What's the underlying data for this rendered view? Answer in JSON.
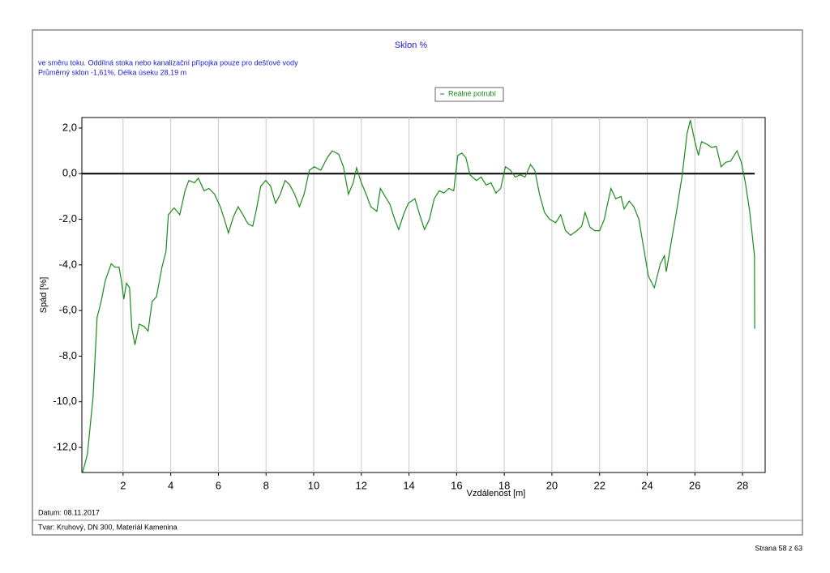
{
  "chart_data": {
    "type": "line",
    "title": "Sklon %",
    "subtitle": [
      "ve směru toku. Oddílná stoka nebo kanalizační přípojka pouze pro dešťové vody",
      "Průměrný sklon -1,61%, Délka úseku  28,19 m"
    ],
    "x_label": "Vzdálenost [m]",
    "y_label": "Spád [%]",
    "legend": "top-center",
    "grid": "x",
    "reference_line": {
      "value": 0,
      "color": "#000000"
    },
    "xlim": [
      0.27,
      28.95
    ],
    "ylim": [
      -13.1,
      2.46
    ],
    "xticks": [
      2,
      4,
      6,
      8,
      10,
      12,
      14,
      16,
      18,
      20,
      22,
      24,
      26,
      28
    ],
    "yticks": [
      {
        "value": 2,
        "label": "2,0"
      },
      {
        "value": 0,
        "label": "0,0"
      },
      {
        "value": -2,
        "label": "-2,0"
      },
      {
        "value": -4,
        "label": "-4,0"
      },
      {
        "value": -6,
        "label": "-6,0"
      },
      {
        "value": -8,
        "label": "-8,0"
      },
      {
        "value": -10,
        "label": "-10,0"
      },
      {
        "value": -12,
        "label": "-12,0"
      }
    ],
    "x": [
      0.3,
      0.5,
      0.74,
      0.91,
      1.08,
      1.25,
      1.5,
      1.66,
      1.83,
      1.93,
      2.03,
      2.14,
      2.27,
      2.37,
      2.5,
      2.68,
      2.88,
      3.05,
      3.22,
      3.4,
      3.63,
      3.8,
      3.9,
      4.14,
      4.38,
      4.6,
      4.76,
      5.0,
      5.16,
      5.4,
      5.6,
      5.84,
      6.08,
      6.25,
      6.42,
      6.63,
      6.83,
      7.03,
      7.24,
      7.44,
      7.58,
      7.78,
      7.99,
      8.19,
      8.4,
      8.6,
      8.8,
      9.0,
      9.2,
      9.4,
      9.6,
      9.82,
      10.03,
      10.3,
      10.57,
      10.78,
      11.05,
      11.25,
      11.46,
      11.66,
      11.8,
      12.0,
      12.2,
      12.4,
      12.65,
      12.8,
      13.0,
      13.2,
      13.4,
      13.57,
      13.77,
      13.97,
      14.25,
      14.45,
      14.65,
      14.86,
      15.06,
      15.27,
      15.47,
      15.67,
      15.88,
      16.05,
      16.22,
      16.39,
      16.56,
      16.83,
      17.03,
      17.24,
      17.44,
      17.65,
      17.85,
      18.05,
      18.26,
      18.46,
      18.67,
      18.87,
      19.1,
      19.28,
      19.48,
      19.69,
      19.9,
      20.16,
      20.37,
      20.57,
      20.78,
      21.05,
      21.25,
      21.39,
      21.6,
      21.8,
      22.0,
      22.2,
      22.34,
      22.48,
      22.68,
      22.9,
      23.03,
      23.24,
      23.44,
      23.65,
      23.85,
      24.05,
      24.3,
      24.55,
      24.72,
      24.8,
      25.0,
      25.23,
      25.47,
      25.67,
      25.81,
      26.0,
      26.15,
      26.28,
      26.49,
      26.7,
      26.9,
      27.1,
      27.3,
      27.5,
      27.77,
      27.95,
      28.12,
      28.3,
      28.43,
      28.5,
      28.51
    ],
    "series": [
      {
        "name": "Reálné potrubí",
        "color": "#1a8a1a",
        "values": [
          -13.1,
          -12.3,
          -9.8,
          -6.3,
          -5.6,
          -4.7,
          -3.95,
          -4.1,
          -4.1,
          -4.7,
          -5.5,
          -4.8,
          -5.0,
          -6.8,
          -7.5,
          -6.6,
          -6.7,
          -6.9,
          -5.6,
          -5.4,
          -4.1,
          -3.4,
          -1.8,
          -1.5,
          -1.8,
          -0.75,
          -0.3,
          -0.4,
          -0.2,
          -0.75,
          -0.65,
          -0.9,
          -1.45,
          -2.0,
          -2.6,
          -1.9,
          -1.45,
          -1.8,
          -2.2,
          -2.3,
          -1.65,
          -0.55,
          -0.3,
          -0.55,
          -1.3,
          -0.9,
          -0.3,
          -0.5,
          -0.9,
          -1.45,
          -0.9,
          0.15,
          0.3,
          0.15,
          0.7,
          1.0,
          0.85,
          0.3,
          -0.9,
          -0.4,
          0.25,
          -0.4,
          -0.9,
          -1.45,
          -1.65,
          -0.65,
          -1.0,
          -1.35,
          -2.0,
          -2.45,
          -1.8,
          -1.3,
          -1.1,
          -1.8,
          -2.45,
          -2.0,
          -1.1,
          -0.75,
          -0.85,
          -0.65,
          -0.75,
          0.8,
          0.9,
          0.7,
          -0.05,
          -0.3,
          -0.15,
          -0.5,
          -0.4,
          -0.85,
          -0.65,
          0.3,
          0.15,
          -0.15,
          -0.05,
          -0.15,
          0.4,
          0.15,
          -0.9,
          -1.7,
          -2.0,
          -2.15,
          -1.8,
          -2.5,
          -2.7,
          -2.5,
          -2.3,
          -1.7,
          -2.35,
          -2.5,
          -2.5,
          -2.0,
          -1.3,
          -0.65,
          -1.1,
          -1.0,
          -1.55,
          -1.2,
          -1.45,
          -2.0,
          -3.25,
          -4.5,
          -5.0,
          -3.95,
          -3.6,
          -4.3,
          -3.05,
          -1.65,
          -0.05,
          1.75,
          2.35,
          1.4,
          0.8,
          1.4,
          1.3,
          1.15,
          1.2,
          0.3,
          0.5,
          0.55,
          1.0,
          0.5,
          -0.4,
          -1.65,
          -2.9,
          -3.6,
          -6.8
        ]
      }
    ]
  },
  "footer": {
    "date": "Datum: 08.11.2017",
    "shape": "Tvar: Kruhový, DN 300, Materiál Kamenina",
    "page": "Strana 58 z 63"
  }
}
